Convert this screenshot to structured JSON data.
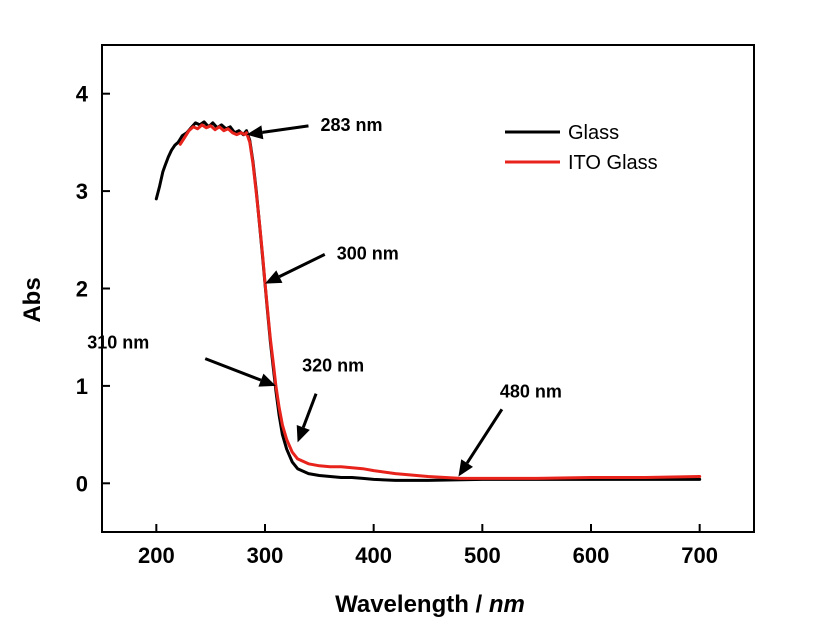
{
  "chart_data": {
    "type": "line",
    "title": "",
    "xlabel": "Wavelength / ",
    "xlabel_unit": "nm",
    "ylabel": "Abs",
    "xlim": [
      150,
      750
    ],
    "ylim": [
      -0.5,
      4.5
    ],
    "xticks": [
      "200",
      "300",
      "400",
      "500",
      "600",
      "700"
    ],
    "yticks": [
      "0",
      "1",
      "2",
      "3",
      "4"
    ],
    "grid": false,
    "legend_position": "top-right",
    "series": [
      {
        "name": "Glass",
        "color": "#000000",
        "x": [
          200,
          203,
          206,
          208,
          211,
          214,
          217,
          220,
          224,
          228,
          232,
          236,
          240,
          244,
          248,
          252,
          256,
          260,
          264,
          268,
          272,
          276,
          280,
          283,
          286,
          289,
          292,
          295,
          298,
          300,
          302,
          305,
          308,
          310,
          313,
          316,
          320,
          325,
          330,
          340,
          350,
          360,
          370,
          380,
          390,
          400,
          420,
          450,
          500,
          550,
          600,
          650,
          700
        ],
        "y": [
          2.92,
          3.05,
          3.2,
          3.26,
          3.35,
          3.42,
          3.47,
          3.5,
          3.57,
          3.6,
          3.65,
          3.7,
          3.68,
          3.71,
          3.66,
          3.7,
          3.65,
          3.68,
          3.64,
          3.66,
          3.6,
          3.62,
          3.58,
          3.62,
          3.52,
          3.3,
          3.0,
          2.65,
          2.3,
          2.05,
          1.8,
          1.45,
          1.15,
          0.95,
          0.7,
          0.5,
          0.35,
          0.22,
          0.15,
          0.1,
          0.08,
          0.07,
          0.06,
          0.06,
          0.05,
          0.04,
          0.03,
          0.03,
          0.04,
          0.04,
          0.04,
          0.04,
          0.04
        ]
      },
      {
        "name": "ITO Glass",
        "color": "#e8231c",
        "x": [
          222,
          226,
          230,
          234,
          238,
          242,
          246,
          250,
          254,
          258,
          262,
          266,
          270,
          274,
          278,
          281,
          283,
          286,
          289,
          292,
          295,
          298,
          300,
          302,
          305,
          308,
          310,
          313,
          316,
          320,
          325,
          330,
          340,
          350,
          360,
          370,
          380,
          390,
          400,
          420,
          450,
          480,
          500,
          550,
          600,
          650,
          700
        ],
        "y": [
          3.48,
          3.55,
          3.62,
          3.66,
          3.64,
          3.68,
          3.65,
          3.67,
          3.63,
          3.66,
          3.62,
          3.64,
          3.6,
          3.58,
          3.6,
          3.58,
          3.6,
          3.5,
          3.28,
          2.98,
          2.66,
          2.32,
          2.06,
          1.82,
          1.48,
          1.2,
          1.0,
          0.78,
          0.6,
          0.45,
          0.32,
          0.25,
          0.2,
          0.18,
          0.17,
          0.17,
          0.16,
          0.15,
          0.13,
          0.1,
          0.07,
          0.05,
          0.05,
          0.05,
          0.06,
          0.06,
          0.07
        ]
      }
    ],
    "annotations": [
      {
        "text": "283 nm",
        "target": [
          283,
          3.58
        ],
        "from": [
          340,
          3.67
        ]
      },
      {
        "text": "300 nm",
        "target": [
          300,
          2.05
        ],
        "from": [
          355,
          2.35
        ]
      },
      {
        "text": "310 nm",
        "target": [
          310,
          1.0
        ],
        "from": [
          245,
          1.28
        ]
      },
      {
        "text": "320 nm",
        "target": [
          330,
          0.42
        ],
        "from": [
          347,
          0.92
        ]
      },
      {
        "text": "480 nm",
        "target": [
          478,
          0.07
        ],
        "from": [
          518,
          0.76
        ]
      }
    ]
  }
}
